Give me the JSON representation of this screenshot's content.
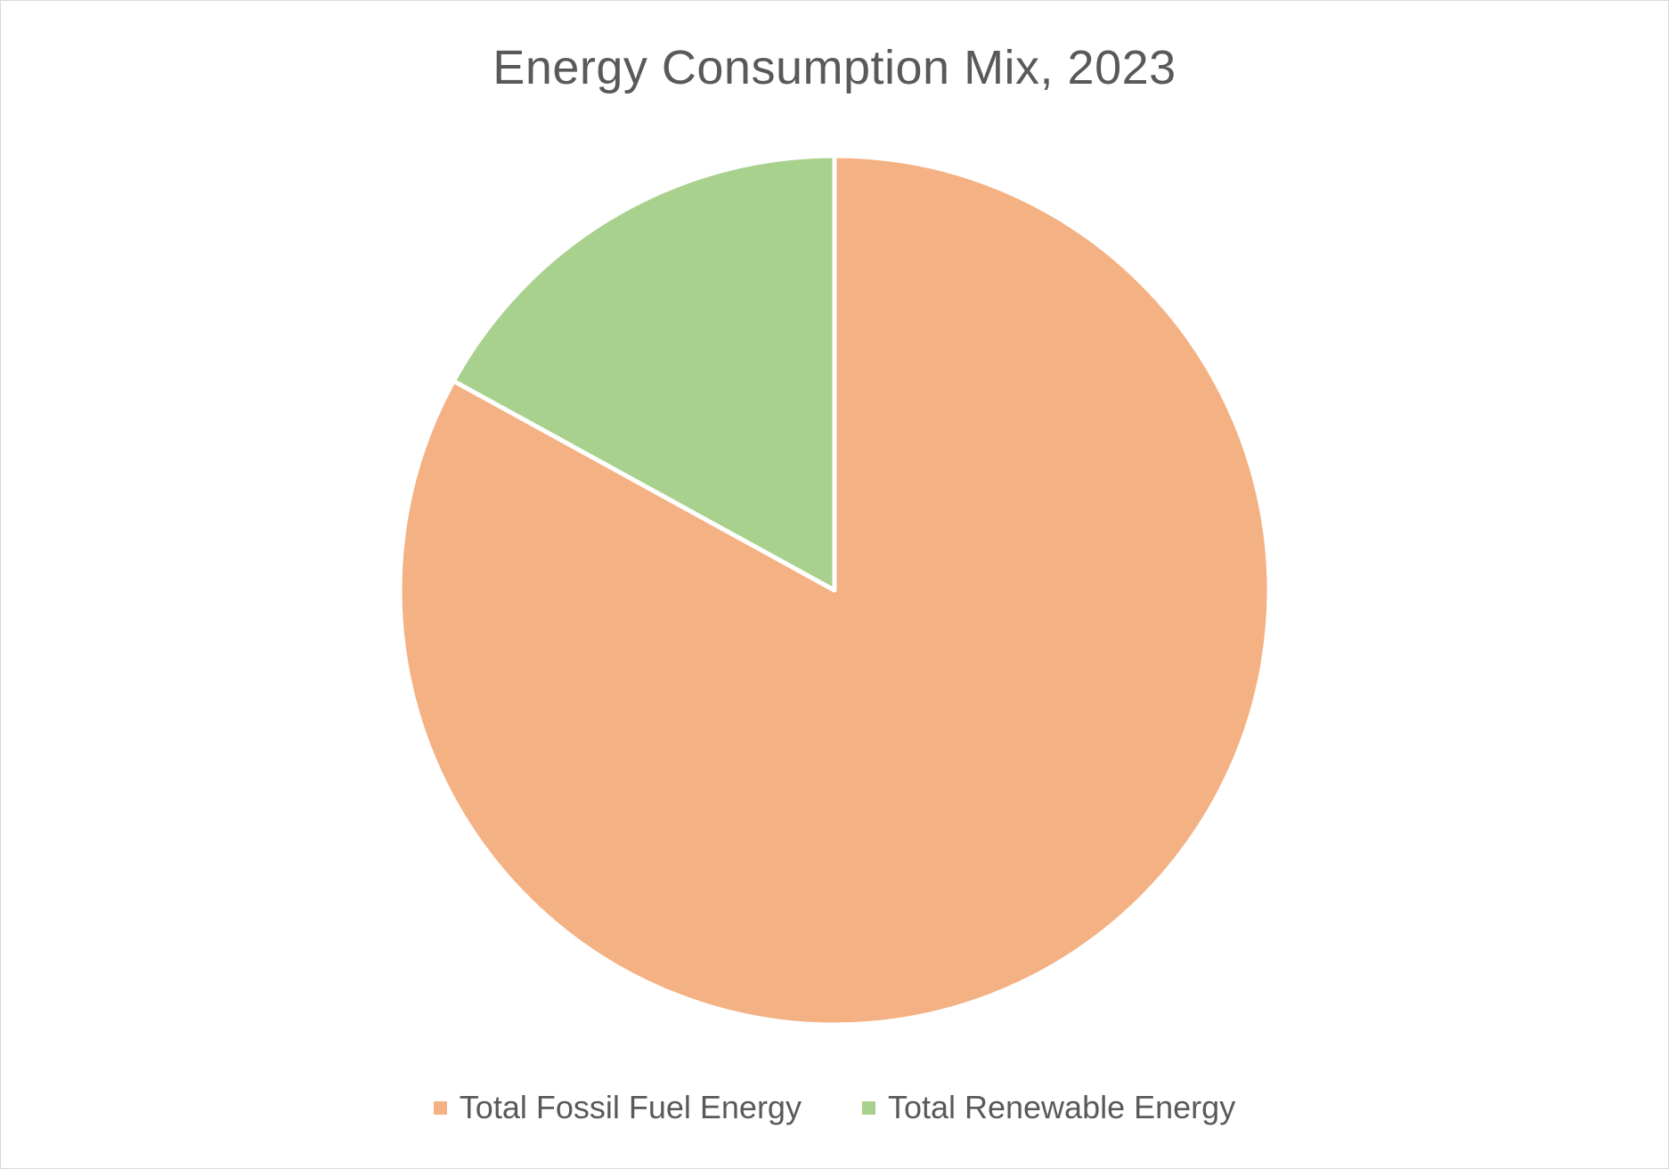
{
  "chart_data": {
    "type": "pie",
    "title": "Energy Consumption Mix, 2023",
    "categories": [
      "Total Fossil Fuel Energy",
      "Total Renewable Energy"
    ],
    "values": [
      83,
      17
    ],
    "colors": [
      "#F4B183",
      "#A9D18E"
    ],
    "start_angle_deg": 0,
    "direction": "clockwise",
    "data_labels": false,
    "legend_position": "bottom"
  }
}
